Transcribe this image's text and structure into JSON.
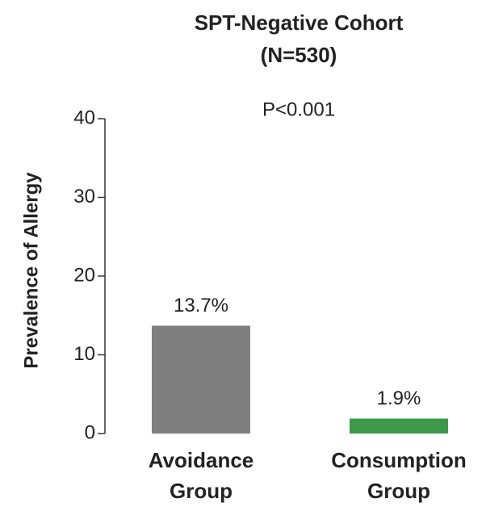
{
  "chart_data": {
    "type": "bar",
    "title": "SPT-Negative Cohort",
    "subtitle": "(N=530)",
    "annotation": "P<0.001",
    "y_label": "Prevalence of Allergy",
    "categories": [
      "Avoidance Group",
      "Consumption Group"
    ],
    "values": [
      13.7,
      1.9
    ],
    "value_labels": [
      "13.7%",
      "1.9%"
    ],
    "colors": [
      "#7f7f7f",
      "#3a9a4a"
    ],
    "ylim": [
      0,
      40
    ],
    "yticks": [
      0,
      10,
      20,
      30,
      40
    ],
    "grid": false
  }
}
